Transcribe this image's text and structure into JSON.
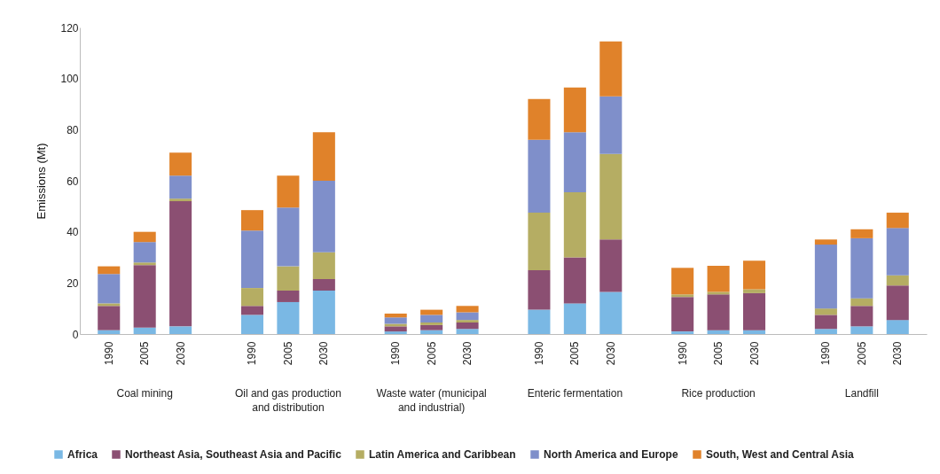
{
  "chart_data": {
    "type": "bar",
    "stacked": true,
    "ylabel": "Emissions (Mt)",
    "categories": [
      "1990",
      "2005",
      "2030",
      "1990",
      "2005",
      "2030",
      "1990",
      "2005",
      "2030",
      "1990",
      "2005",
      "2030",
      "1990",
      "2005",
      "2030",
      "1990",
      "2005",
      "2030"
    ],
    "annotations": [
      "Coal mining",
      "Oil and gas production and distribution",
      "Waste water (municipal and industrial)",
      "Enteric fermentation",
      "Rice production",
      "Landfill"
    ],
    "series": [
      {
        "name": "Africa",
        "color": "#7ab8e4",
        "values": [
          1.5,
          2.5,
          3,
          7.5,
          12.5,
          17,
          1,
          1.5,
          2,
          9.5,
          12,
          16.5,
          1,
          1.5,
          1.5,
          2,
          3,
          5.5
        ]
      },
      {
        "name": "Northeast Asia, Southeast Asia and Pacific",
        "color": "#8b4f72",
        "values": [
          9.5,
          24.5,
          49,
          3.5,
          4.5,
          4.5,
          2,
          2,
          2.5,
          15.5,
          18,
          20.5,
          13.5,
          14,
          14.5,
          5.5,
          8,
          13.5
        ]
      },
      {
        "name": "Latin America and Caribbean",
        "color": "#b5ad63",
        "values": [
          1,
          1,
          1,
          7,
          9.5,
          10.5,
          1,
          1,
          1,
          22.5,
          25.5,
          33.5,
          1,
          1,
          1.5,
          2.5,
          3,
          4
        ]
      },
      {
        "name": "North America and Europe",
        "color": "#7f8fca",
        "values": [
          11.5,
          8,
          9,
          22.5,
          23,
          28,
          2.5,
          3,
          3,
          28.5,
          23.5,
          22.5,
          null,
          null,
          null,
          25,
          23.5,
          18.5
        ]
      },
      {
        "name": "South, West and Central Asia",
        "color": "#e0822a",
        "values": [
          3,
          4,
          9,
          8,
          12.5,
          19,
          1.5,
          2,
          2.5,
          16,
          17.5,
          21.5,
          10.4,
          10.2,
          11.2,
          2,
          3.5,
          6
        ]
      }
    ],
    "ylim": [
      0,
      120
    ],
    "yticks": [
      0,
      20,
      40,
      60,
      80,
      100,
      120
    ],
    "grid": false,
    "legend": "bottom"
  }
}
